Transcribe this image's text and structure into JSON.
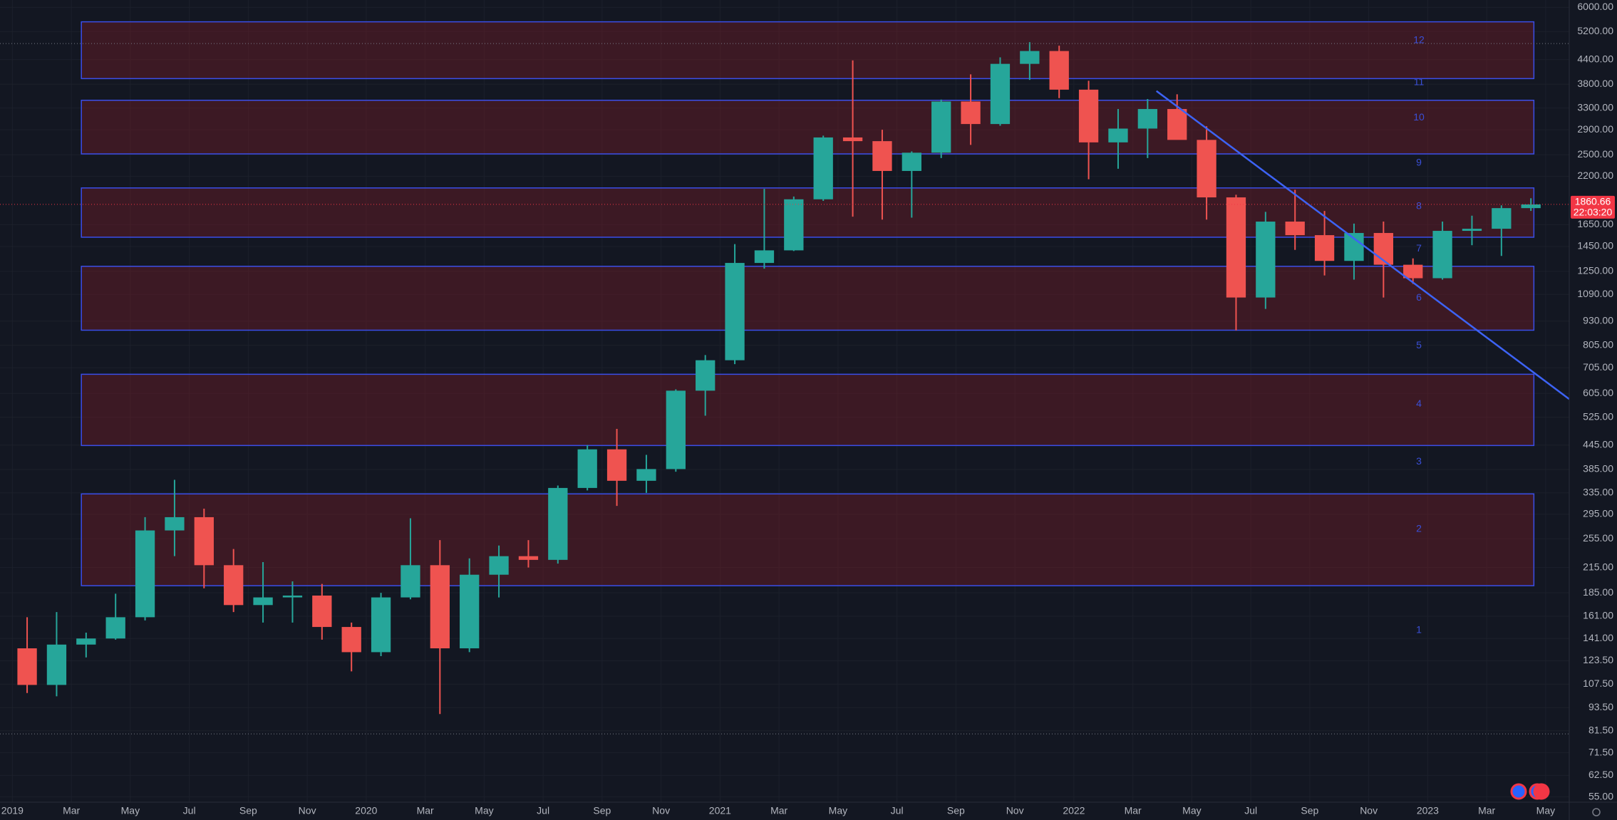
{
  "chart_data": {
    "type": "candlestick",
    "log_scale": true,
    "grid": true,
    "up_color": "#26a69a",
    "down_color": "#ef5350",
    "x": [
      0,
      1,
      2,
      3,
      4,
      5,
      6,
      7,
      8,
      9,
      10,
      11,
      12,
      13,
      14,
      15,
      16,
      17,
      18,
      19,
      20,
      21,
      22,
      23,
      24,
      25,
      26,
      27,
      28,
      29,
      30,
      31,
      32,
      33,
      34,
      35,
      36,
      37,
      38,
      39,
      40,
      41,
      42,
      43,
      44,
      45,
      46,
      47,
      48,
      49,
      50,
      51
    ],
    "open": [
      133,
      107,
      136,
      141,
      160,
      268,
      290,
      218,
      172,
      180,
      182,
      151,
      130,
      180,
      218,
      133,
      206,
      230,
      225,
      345,
      434,
      360,
      386,
      615,
      737,
      1314,
      1416,
      1918,
      2770,
      2710,
      2270,
      2530,
      3430,
      3000,
      4290,
      4630,
      3680,
      2690,
      2920,
      3280,
      2730,
      1940,
      1070,
      1680,
      1550,
      1330,
      1570,
      1300,
      1200,
      1590,
      1610,
      1820
    ],
    "high": [
      160,
      165,
      146,
      184,
      290,
      362,
      305,
      240,
      222,
      198,
      195,
      155,
      185,
      288,
      253,
      227,
      245,
      253,
      350,
      445,
      490,
      420,
      620,
      760,
      1470,
      2040,
      1950,
      2800,
      4380,
      2900,
      2550,
      3470,
      4030,
      4460,
      4880,
      4780,
      3880,
      3280,
      3480,
      3580,
      2960,
      1970,
      1780,
      2030,
      1790,
      1660,
      1680,
      1350,
      1680,
      1740,
      1850,
      1930
    ],
    "low": [
      102,
      100,
      126,
      140,
      157,
      230,
      190,
      165,
      155,
      155,
      140,
      116,
      127,
      178,
      90,
      130,
      180,
      215,
      220,
      340,
      310,
      335,
      380,
      530,
      720,
      1270,
      1410,
      1900,
      1730,
      1700,
      1720,
      2450,
      2650,
      2970,
      3900,
      3500,
      2160,
      2300,
      2450,
      2750,
      1700,
      880,
      1000,
      1420,
      1220,
      1190,
      1070,
      1160,
      1190,
      1460,
      1370,
      1790
    ],
    "close": [
      107,
      136,
      141,
      160,
      268,
      290,
      218,
      172,
      180,
      182,
      151,
      130,
      180,
      218,
      133,
      206,
      230,
      225,
      345,
      434,
      360,
      386,
      615,
      737,
      1314,
      1416,
      1918,
      2770,
      2710,
      2270,
      2530,
      3430,
      3000,
      4290,
      4630,
      3680,
      2690,
      2920,
      3280,
      2730,
      1940,
      1070,
      1680,
      1550,
      1330,
      1570,
      1300,
      1200,
      1590,
      1610,
      1820,
      1860.66
    ],
    "xlim": [
      -0.42,
      52.8
    ],
    "ylim": [
      53.3,
      6270
    ],
    "xticks": [
      {
        "value": 0,
        "label": "2019"
      },
      {
        "value": 2,
        "label": "Mar"
      },
      {
        "value": 4,
        "label": "May"
      },
      {
        "value": 6,
        "label": "Jul"
      },
      {
        "value": 8,
        "label": "Sep"
      },
      {
        "value": 10,
        "label": "Nov"
      },
      {
        "value": 12,
        "label": "2020"
      },
      {
        "value": 14,
        "label": "Mar"
      },
      {
        "value": 16,
        "label": "May"
      },
      {
        "value": 18,
        "label": "Jul"
      },
      {
        "value": 20,
        "label": "Sep"
      },
      {
        "value": 22,
        "label": "Nov"
      },
      {
        "value": 24,
        "label": "2021"
      },
      {
        "value": 26,
        "label": "Mar"
      },
      {
        "value": 28,
        "label": "May"
      },
      {
        "value": 30,
        "label": "Jul"
      },
      {
        "value": 32,
        "label": "Sep"
      },
      {
        "value": 34,
        "label": "Nov"
      },
      {
        "value": 36,
        "label": "2022"
      },
      {
        "value": 38,
        "label": "Mar"
      },
      {
        "value": 40,
        "label": "May"
      },
      {
        "value": 42,
        "label": "Jul"
      },
      {
        "value": 44,
        "label": "Sep"
      },
      {
        "value": 46,
        "label": "Nov"
      },
      {
        "value": 48,
        "label": "2023"
      },
      {
        "value": 50,
        "label": "Mar"
      },
      {
        "value": 52,
        "label": "May"
      }
    ],
    "yticks": [
      {
        "value": 6000,
        "label": "6000.00"
      },
      {
        "value": 5200,
        "label": "5200.00"
      },
      {
        "value": 4400,
        "label": "4400.00"
      },
      {
        "value": 3800,
        "label": "3800.00"
      },
      {
        "value": 3300,
        "label": "3300.00"
      },
      {
        "value": 2900,
        "label": "2900.00"
      },
      {
        "value": 2500,
        "label": "2500.00"
      },
      {
        "value": 2200,
        "label": "2200.00"
      },
      {
        "value": 1650,
        "label": "1650.00"
      },
      {
        "value": 1450,
        "label": "1450.00"
      },
      {
        "value": 1250,
        "label": "1250.00"
      },
      {
        "value": 1090,
        "label": "1090.00"
      },
      {
        "value": 930,
        "label": "930.00"
      },
      {
        "value": 805,
        "label": "805.00"
      },
      {
        "value": 705,
        "label": "705.00"
      },
      {
        "value": 605,
        "label": "605.00"
      },
      {
        "value": 525,
        "label": "525.00"
      },
      {
        "value": 445,
        "label": "445.00"
      },
      {
        "value": 385,
        "label": "385.00"
      },
      {
        "value": 335,
        "label": "335.00"
      },
      {
        "value": 295,
        "label": "295.00"
      },
      {
        "value": 255,
        "label": "255.00"
      },
      {
        "value": 215,
        "label": "215.00"
      },
      {
        "value": 185,
        "label": "185.00"
      },
      {
        "value": 161,
        "label": "161.00"
      },
      {
        "value": 141,
        "label": "141.00"
      },
      {
        "value": 123.5,
        "label": "123.50"
      },
      {
        "value": 107.5,
        "label": "107.50"
      },
      {
        "value": 93.5,
        "label": "93.50"
      },
      {
        "value": 81.5,
        "label": "81.50"
      },
      {
        "value": 71.5,
        "label": "71.50"
      },
      {
        "value": 62.5,
        "label": "62.50"
      },
      {
        "value": 55,
        "label": "55.00"
      }
    ],
    "zones": [
      {
        "x": [
          2.34,
          51.6
        ],
        "y": [
          193,
          333
        ]
      },
      {
        "x": [
          2.34,
          51.6
        ],
        "y": [
          444,
          678
        ]
      },
      {
        "x": [
          2.34,
          51.6
        ],
        "y": [
          881,
          1288
        ]
      },
      {
        "x": [
          2.34,
          51.6
        ],
        "y": [
          1531,
          2052
        ]
      },
      {
        "x": [
          2.34,
          51.6
        ],
        "y": [
          2512,
          3455
        ]
      },
      {
        "x": [
          2.34,
          51.6
        ],
        "y": [
          3930,
          5508
        ]
      }
    ],
    "zone_fill": "rgba(130,30,40,0.38)",
    "zone_border": "#3a4ee8",
    "level_labels": {
      "x": 47.7,
      "color": "#3a4fd6",
      "labels": [
        "1",
        "2",
        "3",
        "4",
        "5",
        "6",
        "7",
        "8",
        "9",
        "10",
        "11",
        "12"
      ],
      "values": [
        148,
        270,
        403,
        568,
        804,
        1067,
        1430,
        1838,
        2378,
        3115,
        3840,
        4930
      ]
    },
    "trendline": {
      "x": [
        38.8,
        52.8
      ],
      "y": [
        3651,
        585
      ],
      "color": "#3d63f5"
    },
    "reference_lines": [
      4840,
      80
    ],
    "last_price_countdown": "22:03:20",
    "last_price_color": "#f23645"
  }
}
